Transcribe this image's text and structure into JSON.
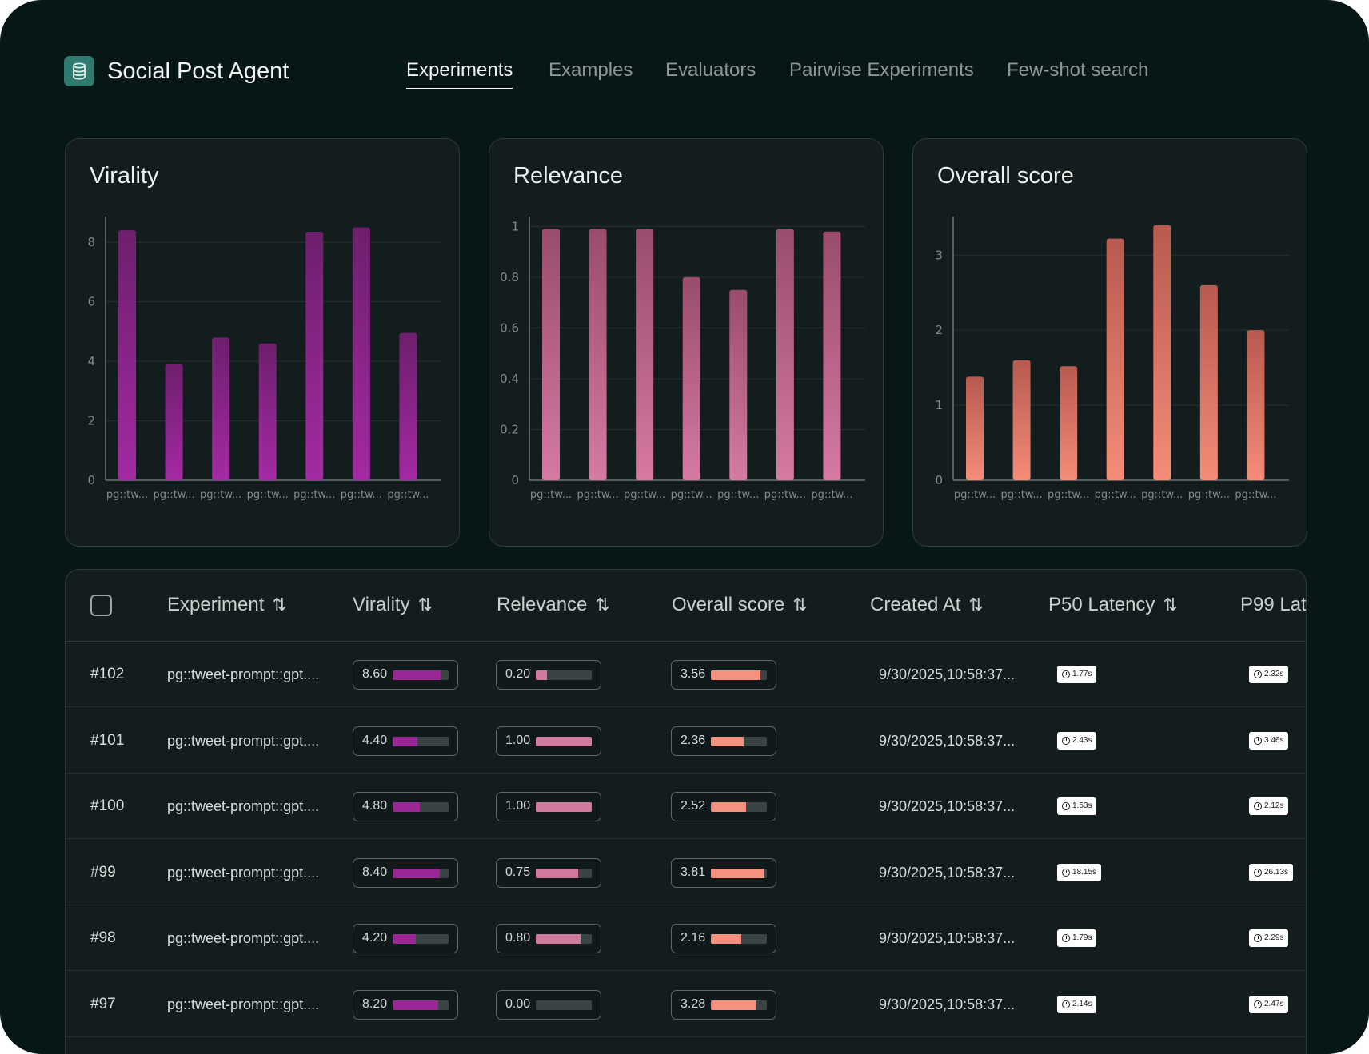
{
  "app": {
    "title": "Social Post Agent",
    "logo_icon": "database-icon"
  },
  "tabs": [
    {
      "label": "Experiments",
      "active": true
    },
    {
      "label": "Examples",
      "active": false
    },
    {
      "label": "Evaluators",
      "active": false
    },
    {
      "label": "Pairwise Experiments",
      "active": false
    },
    {
      "label": "Few-shot search",
      "active": false
    }
  ],
  "chart_data": [
    {
      "type": "bar",
      "title": "Virality",
      "categories": [
        "pg::tw...",
        "pg::tw...",
        "pg::tw...",
        "pg::tw...",
        "pg::tw...",
        "pg::tw...",
        "pg::tw..."
      ],
      "values": [
        8.4,
        3.9,
        4.8,
        4.6,
        8.35,
        8.5,
        4.95
      ],
      "yticks": [
        "0",
        "2",
        "4",
        "6",
        "8"
      ],
      "ylim": [
        0,
        8.7
      ],
      "color_top": "#6e1f6d",
      "color_bottom": "#a32aa3"
    },
    {
      "type": "bar",
      "title": "Relevance",
      "categories": [
        "pg::tw...",
        "pg::tw...",
        "pg::tw...",
        "pg::tw...",
        "pg::tw...",
        "pg::tw...",
        "pg::tw..."
      ],
      "values": [
        0.99,
        0.99,
        0.99,
        0.8,
        0.75,
        0.99,
        0.98
      ],
      "yticks": [
        "0",
        "0.2",
        "0.4",
        "0.6",
        "0.8",
        "1"
      ],
      "ylim": [
        0,
        1.02
      ],
      "color_top": "#9a4c6e",
      "color_bottom": "#d57aa3"
    },
    {
      "type": "bar",
      "title": "Overall score",
      "categories": [
        "pg::tw...",
        "pg::tw...",
        "pg::tw...",
        "pg::tw...",
        "pg::tw...",
        "pg::tw...",
        "pg::tw..."
      ],
      "values": [
        1.38,
        1.6,
        1.52,
        3.22,
        3.4,
        2.6,
        2.0
      ],
      "yticks": [
        "0",
        "1",
        "2",
        "3"
      ],
      "ylim": [
        0,
        3.45
      ],
      "color_top": "#b75a4f",
      "color_bottom": "#f48c78"
    }
  ],
  "table": {
    "headers": [
      "Experiment",
      "Virality",
      "Relevance",
      "Overall score",
      "Created At",
      "P50 Latency",
      "P99 Lat"
    ],
    "rows": [
      {
        "id": "#102",
        "experiment": "pg::tweet-prompt::gpt....",
        "virality": "8.60",
        "relevance": "0.20",
        "overall": "3.56",
        "created": "9/30/2025,10:58:37...",
        "p50": "1.77s",
        "p99": "2.32s"
      },
      {
        "id": "#101",
        "experiment": "pg::tweet-prompt::gpt....",
        "virality": "4.40",
        "relevance": "1.00",
        "overall": "2.36",
        "created": "9/30/2025,10:58:37...",
        "p50": "2.43s",
        "p99": "3.46s"
      },
      {
        "id": "#100",
        "experiment": "pg::tweet-prompt::gpt....",
        "virality": "4.80",
        "relevance": "1.00",
        "overall": "2.52",
        "created": "9/30/2025,10:58:37...",
        "p50": "1.53s",
        "p99": "2.12s"
      },
      {
        "id": "#99",
        "experiment": "pg::tweet-prompt::gpt....",
        "virality": "8.40",
        "relevance": "0.75",
        "overall": "3.81",
        "created": "9/30/2025,10:58:37...",
        "p50": "18.15s",
        "p99": "26.13s"
      },
      {
        "id": "#98",
        "experiment": "pg::tweet-prompt::gpt....",
        "virality": "4.20",
        "relevance": "0.80",
        "overall": "2.16",
        "created": "9/30/2025,10:58:37...",
        "p50": "1.79s",
        "p99": "2.29s"
      },
      {
        "id": "#97",
        "experiment": "pg::tweet-prompt::gpt....",
        "virality": "8.20",
        "relevance": "0.00",
        "overall": "3.28",
        "created": "9/30/2025,10:58:37...",
        "p50": "2.14s",
        "p99": "2.47s"
      }
    ]
  },
  "colors": {
    "virality": "#9b2796",
    "relevance": "#d07aa0",
    "overall": "#f4917f",
    "background": "#061716"
  }
}
